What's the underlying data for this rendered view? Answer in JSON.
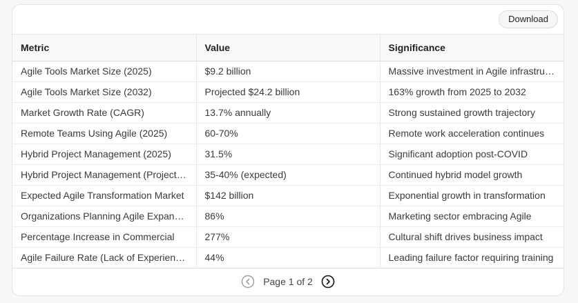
{
  "toolbar": {
    "download_label": "Download"
  },
  "table": {
    "headers": [
      "Metric",
      "Value",
      "Significance"
    ],
    "rows": [
      [
        "Agile Tools Market Size (2025)",
        "$9.2 billion",
        "Massive investment in Agile infrastructure"
      ],
      [
        "Agile Tools Market Size (2032)",
        "Projected $24.2 billion",
        "163% growth from 2025 to 2032"
      ],
      [
        "Market Growth Rate (CAGR)",
        "13.7% annually",
        "Strong sustained growth trajectory"
      ],
      [
        "Remote Teams Using Agile (2025)",
        "60-70%",
        "Remote work acceleration continues"
      ],
      [
        "Hybrid Project Management (2025)",
        "31.5%",
        "Significant adoption post-COVID"
      ],
      [
        "Hybrid Project Management (Projected)",
        "35-40% (expected)",
        "Continued hybrid model growth"
      ],
      [
        "Expected Agile Transformation Market",
        "$142 billion",
        "Exponential growth in transformation"
      ],
      [
        "Organizations Planning Agile Expansion",
        "86%",
        "Marketing sector embracing Agile"
      ],
      [
        "Percentage Increase in Commercial",
        "277%",
        "Cultural shift drives business impact"
      ],
      [
        "Agile Failure Rate (Lack of Experience)",
        "44%",
        "Leading failure factor requiring training"
      ]
    ]
  },
  "pagination": {
    "label": "Page 1 of 2",
    "prev_icon": "chevron-left-circle-icon",
    "next_icon": "chevron-right-circle-icon"
  },
  "colors": {
    "border": "#e5e5e5",
    "header_bg": "#f8f9fa",
    "page_bg": "#f7f7f7"
  }
}
